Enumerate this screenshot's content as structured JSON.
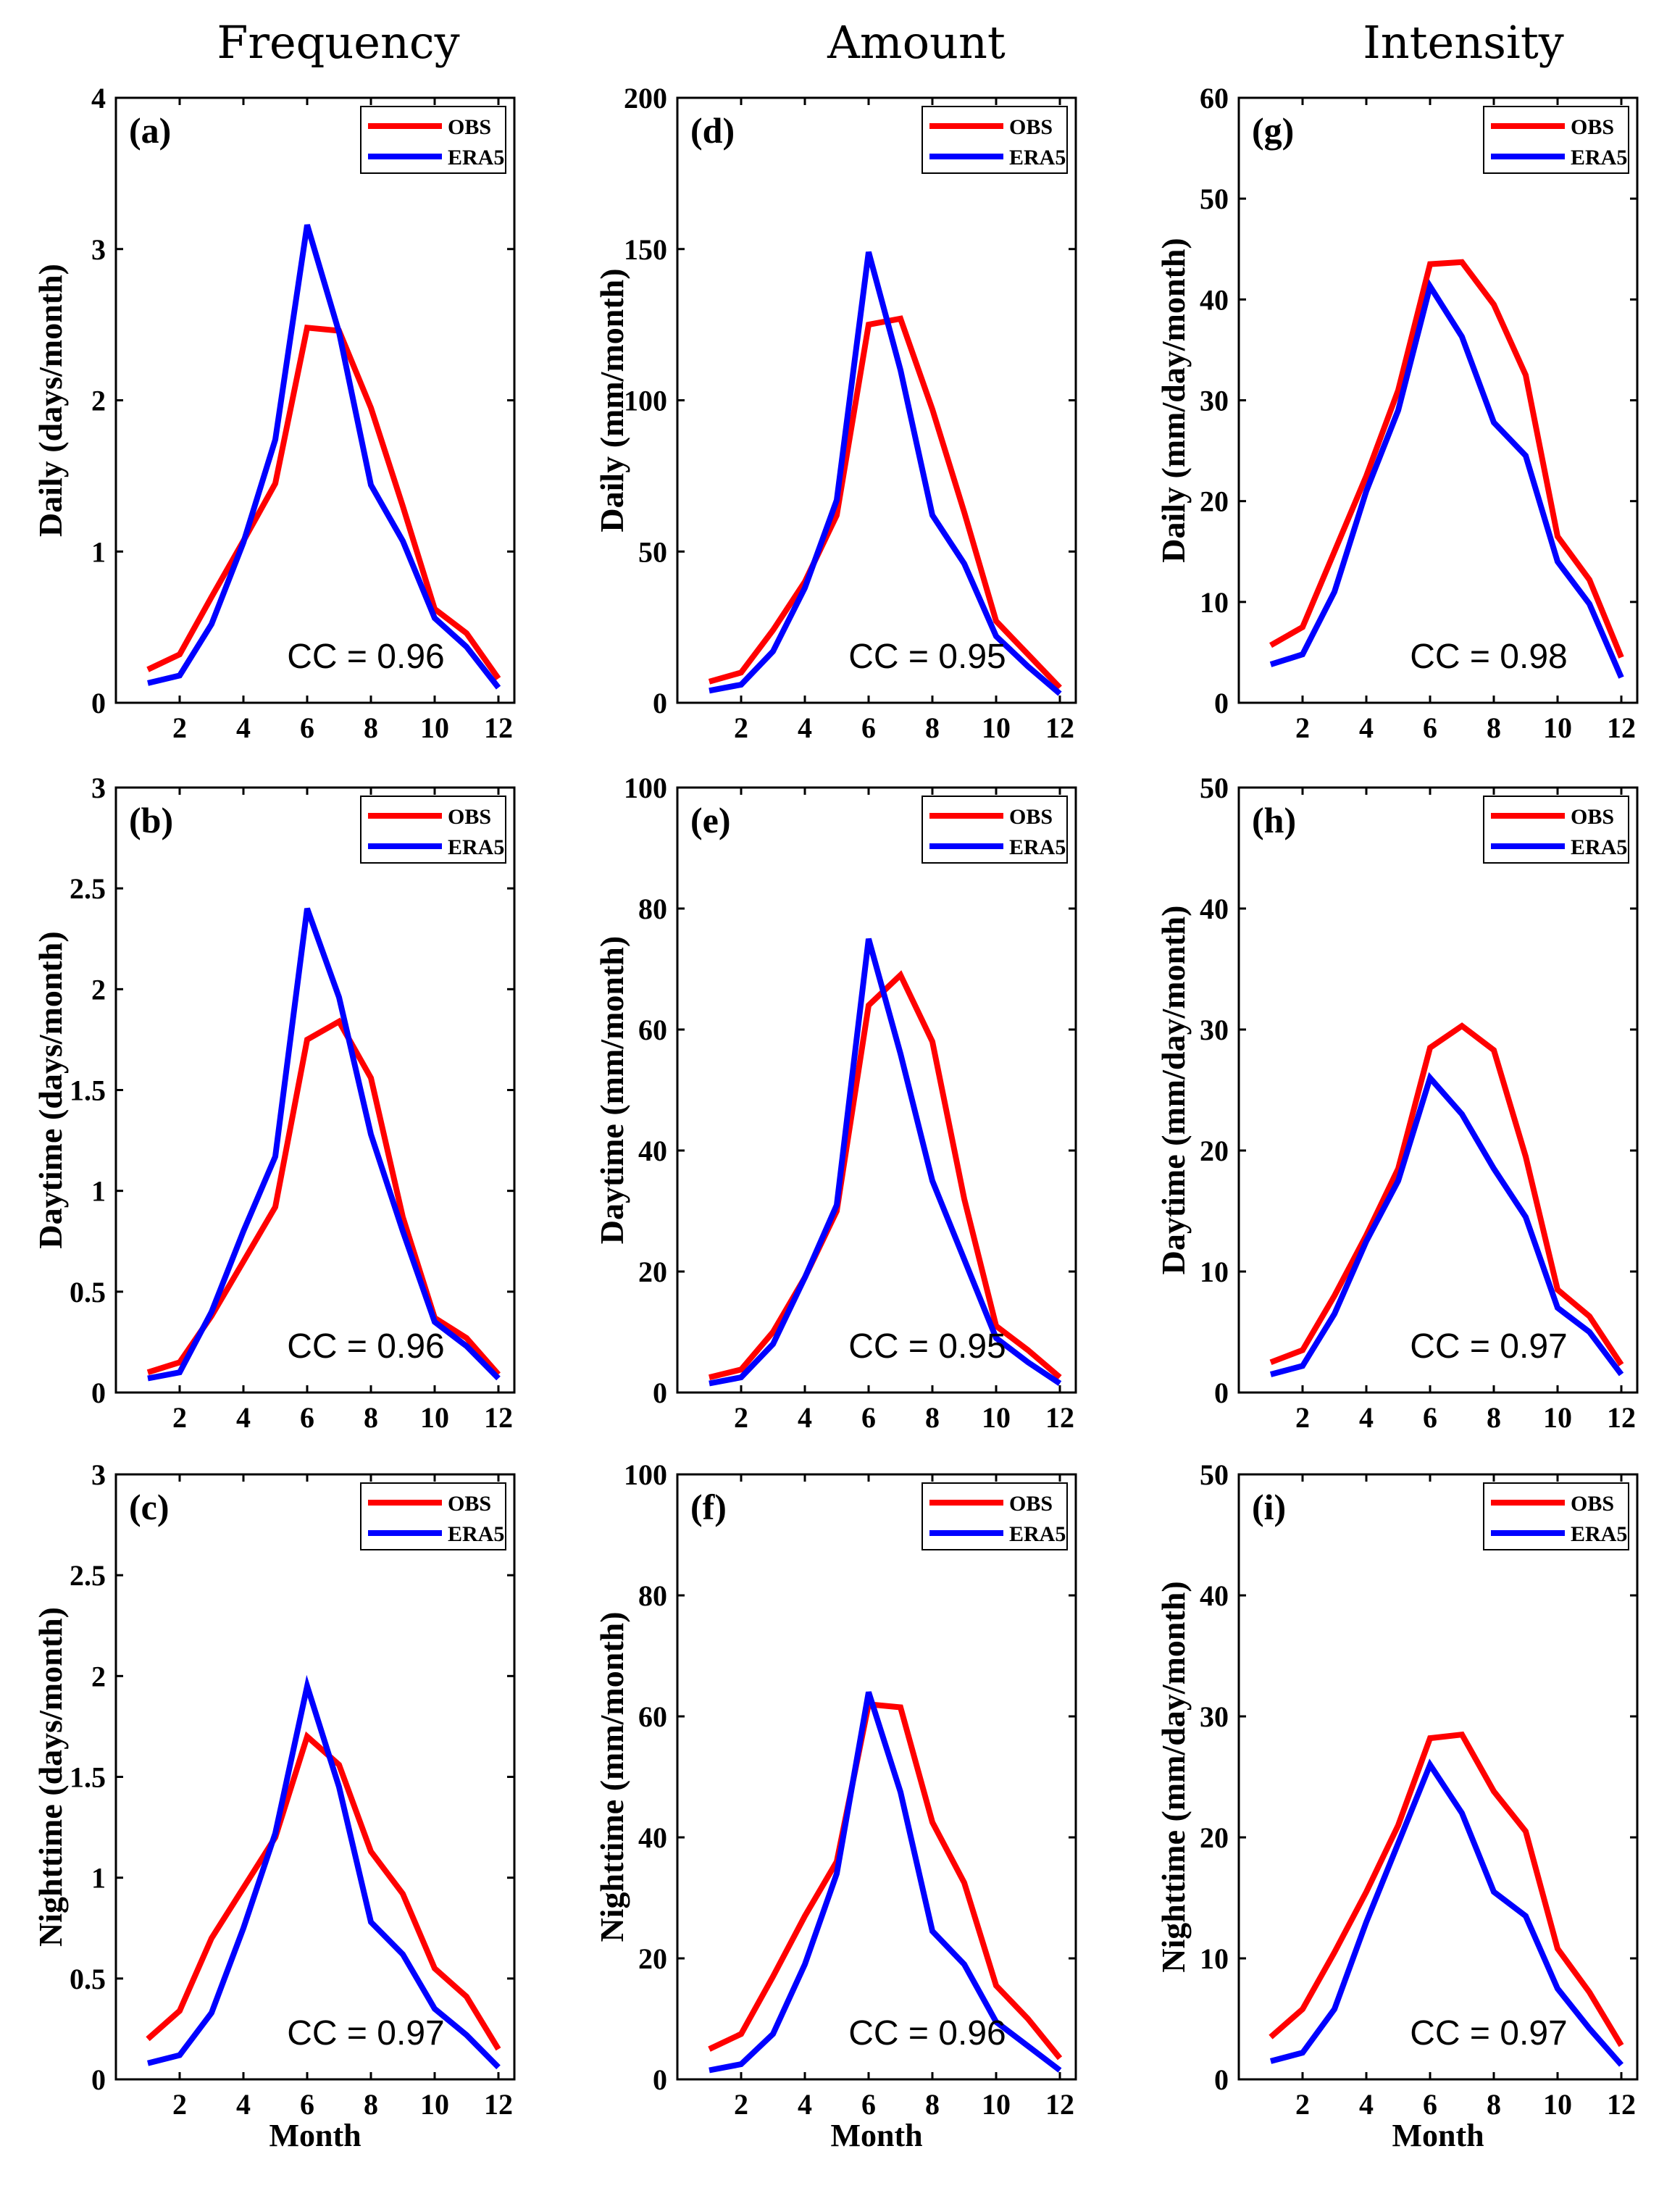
{
  "columns": [
    "Frequency",
    "Amount",
    "Intensity"
  ],
  "colors": {
    "obs": "#ff0000",
    "era5": "#0000ff"
  },
  "chart_data": [
    {
      "id": "a",
      "type": "line",
      "panel_label": "(a)",
      "ylabel": "Daily (days/month)",
      "xlabel": "",
      "ylim": [
        0,
        4
      ],
      "yticks": [
        0,
        1,
        2,
        3,
        4
      ],
      "xlim": [
        0,
        12.5
      ],
      "xticks": [
        2,
        4,
        6,
        8,
        10,
        12
      ],
      "cc_text": "CC = 0.96",
      "series": [
        {
          "name": "OBS",
          "x": [
            1,
            2,
            3,
            4,
            5,
            6,
            7,
            8,
            9,
            10,
            11,
            12
          ],
          "values": [
            0.22,
            0.32,
            0.7,
            1.07,
            1.45,
            2.48,
            2.46,
            1.95,
            1.3,
            0.62,
            0.46,
            0.16
          ]
        },
        {
          "name": "ERA5",
          "x": [
            1,
            2,
            3,
            4,
            5,
            6,
            7,
            8,
            9,
            10,
            11,
            12
          ],
          "values": [
            0.13,
            0.18,
            0.52,
            1.06,
            1.74,
            3.16,
            2.45,
            1.44,
            1.07,
            0.56,
            0.37,
            0.1
          ]
        }
      ]
    },
    {
      "id": "b",
      "type": "line",
      "panel_label": "(b)",
      "ylabel": "Daytime (days/month)",
      "xlabel": "",
      "ylim": [
        0,
        3
      ],
      "yticks": [
        0,
        0.5,
        1,
        1.5,
        2,
        2.5,
        3
      ],
      "xlim": [
        0,
        12.5
      ],
      "xticks": [
        2,
        4,
        6,
        8,
        10,
        12
      ],
      "cc_text": "CC = 0.96",
      "series": [
        {
          "name": "OBS",
          "x": [
            1,
            2,
            3,
            4,
            5,
            6,
            7,
            8,
            9,
            10,
            11,
            12
          ],
          "values": [
            0.1,
            0.15,
            0.38,
            0.65,
            0.92,
            1.75,
            1.84,
            1.56,
            0.87,
            0.37,
            0.27,
            0.09
          ]
        },
        {
          "name": "ERA5",
          "x": [
            1,
            2,
            3,
            4,
            5,
            6,
            7,
            8,
            9,
            10,
            11,
            12
          ],
          "values": [
            0.07,
            0.1,
            0.4,
            0.8,
            1.17,
            2.4,
            1.96,
            1.28,
            0.8,
            0.35,
            0.23,
            0.07
          ]
        }
      ]
    },
    {
      "id": "c",
      "type": "line",
      "panel_label": "(c)",
      "ylabel": "Nighttime (days/month)",
      "xlabel": "Month",
      "ylim": [
        0,
        3
      ],
      "yticks": [
        0,
        0.5,
        1,
        1.5,
        2,
        2.5,
        3
      ],
      "xlim": [
        0,
        12.5
      ],
      "xticks": [
        2,
        4,
        6,
        8,
        10,
        12
      ],
      "cc_text": "CC = 0.97",
      "series": [
        {
          "name": "OBS",
          "x": [
            1,
            2,
            3,
            4,
            5,
            6,
            7,
            8,
            9,
            10,
            11,
            12
          ],
          "values": [
            0.2,
            0.34,
            0.7,
            0.95,
            1.2,
            1.7,
            1.56,
            1.13,
            0.92,
            0.55,
            0.41,
            0.15
          ]
        },
        {
          "name": "ERA5",
          "x": [
            1,
            2,
            3,
            4,
            5,
            6,
            7,
            8,
            9,
            10,
            11,
            12
          ],
          "values": [
            0.08,
            0.12,
            0.33,
            0.75,
            1.22,
            1.95,
            1.45,
            0.78,
            0.62,
            0.35,
            0.22,
            0.06
          ]
        }
      ]
    },
    {
      "id": "d",
      "type": "line",
      "panel_label": "(d)",
      "ylabel": "Daily (mm/month)",
      "xlabel": "",
      "ylim": [
        0,
        200
      ],
      "yticks": [
        0,
        50,
        100,
        150,
        200
      ],
      "xlim": [
        0,
        12.5
      ],
      "xticks": [
        2,
        4,
        6,
        8,
        10,
        12
      ],
      "cc_text": "CC = 0.95",
      "series": [
        {
          "name": "OBS",
          "x": [
            1,
            2,
            3,
            4,
            5,
            6,
            7,
            8,
            9,
            10,
            11,
            12
          ],
          "values": [
            7,
            10,
            24,
            40,
            62,
            125,
            127,
            97,
            63,
            27,
            16,
            5
          ]
        },
        {
          "name": "ERA5",
          "x": [
            1,
            2,
            3,
            4,
            5,
            6,
            7,
            8,
            9,
            10,
            11,
            12
          ],
          "values": [
            4,
            6,
            17,
            38,
            67,
            149,
            110,
            62,
            46,
            22,
            12,
            3
          ]
        }
      ]
    },
    {
      "id": "e",
      "type": "line",
      "panel_label": "(e)",
      "ylabel": "Daytime (mm/month)",
      "xlabel": "",
      "ylim": [
        0,
        100
      ],
      "yticks": [
        0,
        20,
        40,
        60,
        80,
        100
      ],
      "xlim": [
        0,
        12.5
      ],
      "xticks": [
        2,
        4,
        6,
        8,
        10,
        12
      ],
      "cc_text": "CC = 0.95",
      "series": [
        {
          "name": "OBS",
          "x": [
            1,
            2,
            3,
            4,
            5,
            6,
            7,
            8,
            9,
            10,
            11,
            12
          ],
          "values": [
            2.5,
            3.8,
            10,
            19,
            30,
            64,
            69,
            58,
            32,
            11,
            7,
            2.5
          ]
        },
        {
          "name": "ERA5",
          "x": [
            1,
            2,
            3,
            4,
            5,
            6,
            7,
            8,
            9,
            10,
            11,
            12
          ],
          "values": [
            1.5,
            2.5,
            8,
            19,
            31,
            75,
            56,
            35,
            22,
            9,
            5,
            1.5
          ]
        }
      ]
    },
    {
      "id": "f",
      "type": "line",
      "panel_label": "(f)",
      "ylabel": "Nighttime (mm/month)",
      "xlabel": "Month",
      "ylim": [
        0,
        100
      ],
      "yticks": [
        0,
        20,
        40,
        60,
        80,
        100
      ],
      "xlim": [
        0,
        12.5
      ],
      "xticks": [
        2,
        4,
        6,
        8,
        10,
        12
      ],
      "cc_text": "CC = 0.96",
      "series": [
        {
          "name": "OBS",
          "x": [
            1,
            2,
            3,
            4,
            5,
            6,
            7,
            8,
            9,
            10,
            11,
            12
          ],
          "values": [
            5,
            7.5,
            17,
            27,
            36,
            62,
            61.5,
            42.5,
            32.5,
            15.5,
            10,
            3.5
          ]
        },
        {
          "name": "ERA5",
          "x": [
            1,
            2,
            3,
            4,
            5,
            6,
            7,
            8,
            9,
            10,
            11,
            12
          ],
          "values": [
            1.5,
            2.5,
            7.5,
            19,
            34,
            64,
            47.5,
            24.5,
            19,
            9.5,
            5.5,
            1.5
          ]
        }
      ]
    },
    {
      "id": "g",
      "type": "line",
      "panel_label": "(g)",
      "ylabel": "Daily (mm/day/month)",
      "xlabel": "",
      "ylim": [
        0,
        60
      ],
      "yticks": [
        0,
        10,
        20,
        30,
        40,
        50,
        60
      ],
      "xlim": [
        0,
        12.5
      ],
      "xticks": [
        2,
        4,
        6,
        8,
        10,
        12
      ],
      "cc_text": "CC = 0.98",
      "series": [
        {
          "name": "OBS",
          "x": [
            1,
            2,
            3,
            4,
            5,
            6,
            7,
            8,
            9,
            10,
            11,
            12
          ],
          "values": [
            5.7,
            7.5,
            15,
            22.5,
            31,
            43.5,
            43.7,
            39.5,
            32.5,
            16.5,
            12.2,
            4.5
          ]
        },
        {
          "name": "ERA5",
          "x": [
            1,
            2,
            3,
            4,
            5,
            6,
            7,
            8,
            9,
            10,
            11,
            12
          ],
          "values": [
            3.8,
            4.8,
            11,
            21,
            29,
            41.3,
            36.3,
            27.8,
            24.5,
            14,
            9.8,
            2.5
          ]
        }
      ]
    },
    {
      "id": "h",
      "type": "line",
      "panel_label": "(h)",
      "ylabel": "Daytime (mm/day/month)",
      "xlabel": "",
      "ylim": [
        0,
        50
      ],
      "yticks": [
        0,
        10,
        20,
        30,
        40,
        50
      ],
      "xlim": [
        0,
        12.5
      ],
      "xticks": [
        2,
        4,
        6,
        8,
        10,
        12
      ],
      "cc_text": "CC = 0.97",
      "series": [
        {
          "name": "OBS",
          "x": [
            1,
            2,
            3,
            4,
            5,
            6,
            7,
            8,
            9,
            10,
            11,
            12
          ],
          "values": [
            2.5,
            3.5,
            8,
            13,
            18.5,
            28.5,
            30.3,
            28.3,
            19.5,
            8.5,
            6.3,
            2.3
          ]
        },
        {
          "name": "ERA5",
          "x": [
            1,
            2,
            3,
            4,
            5,
            6,
            7,
            8,
            9,
            10,
            11,
            12
          ],
          "values": [
            1.5,
            2.2,
            6.5,
            12.5,
            17.5,
            26,
            23,
            18.5,
            14.5,
            7,
            5,
            1.5
          ]
        }
      ]
    },
    {
      "id": "i",
      "type": "line",
      "panel_label": "(i)",
      "ylabel": "Nighttime (mm/day/month)",
      "xlabel": "Month",
      "ylim": [
        0,
        50
      ],
      "yticks": [
        0,
        10,
        20,
        30,
        40,
        50
      ],
      "xlim": [
        0,
        12.5
      ],
      "xticks": [
        2,
        4,
        6,
        8,
        10,
        12
      ],
      "cc_text": "CC = 0.97",
      "series": [
        {
          "name": "OBS",
          "x": [
            1,
            2,
            3,
            4,
            5,
            6,
            7,
            8,
            9,
            10,
            11,
            12
          ],
          "values": [
            3.5,
            5.8,
            10.5,
            15.5,
            21,
            28.2,
            28.5,
            23.8,
            20.5,
            10.8,
            7.2,
            2.8
          ]
        },
        {
          "name": "ERA5",
          "x": [
            1,
            2,
            3,
            4,
            5,
            6,
            7,
            8,
            9,
            10,
            11,
            12
          ],
          "values": [
            1.5,
            2.2,
            5.8,
            13,
            19.5,
            26,
            22,
            15.5,
            13.5,
            7.5,
            4.2,
            1.2
          ]
        }
      ]
    }
  ]
}
